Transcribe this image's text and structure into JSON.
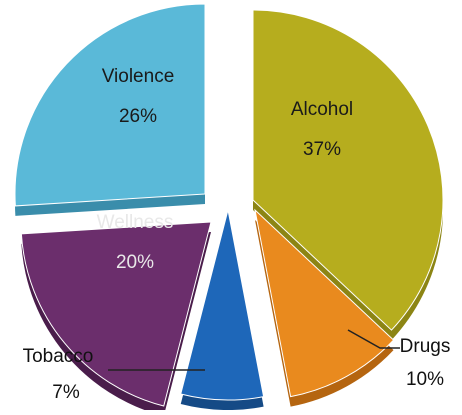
{
  "chart_data": {
    "type": "pie",
    "title": "",
    "style": "exploded-3d",
    "legend": "none",
    "slices": [
      {
        "label": "Alcohol",
        "value": 37,
        "pct_label": "37%",
        "color": "#b6ad1e",
        "side_color": "#8c8514",
        "text_color": "#1a1a1a"
      },
      {
        "label": "Drugs",
        "value": 10,
        "pct_label": "10%",
        "color": "#e98a1e",
        "side_color": "#b56510",
        "text_color": "#111111"
      },
      {
        "label": "Tobacco",
        "value": 7,
        "pct_label": "7%",
        "color": "#1e67b9",
        "side_color": "#154a86",
        "text_color": "#111111"
      },
      {
        "label": "Wellness",
        "value": 20,
        "pct_label": "20%",
        "color": "#6b2e6c",
        "side_color": "#4a1d4b",
        "text_color": "#e8e8e8"
      },
      {
        "label": "Violence",
        "value": 26,
        "pct_label": "26%",
        "color": "#5ab9d8",
        "side_color": "#3a8dab",
        "text_color": "#1a1a1a"
      }
    ]
  }
}
